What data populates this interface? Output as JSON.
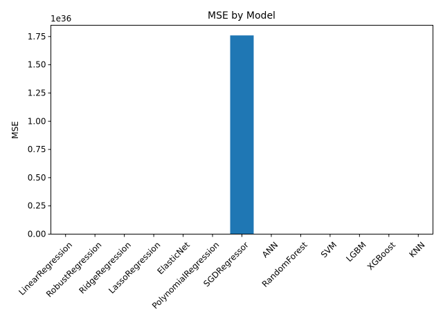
{
  "chart_data": {
    "type": "bar",
    "title": "MSE by Model",
    "xlabel": "",
    "ylabel": "MSE",
    "scale_label": "1e36",
    "categories": [
      "LinearRegression",
      "RobustRegression",
      "RidgeRegression",
      "LassoRegression",
      "ElasticNet",
      "PolynomialRegression",
      "SGDRegressor",
      "ANN",
      "RandomForest",
      "SVM",
      "LGBM",
      "XGBoost",
      "KNN"
    ],
    "values": [
      0,
      0,
      0,
      0,
      0,
      0,
      1.76,
      0,
      0,
      0,
      0,
      0,
      0
    ],
    "value_unit_multiplier": "1e36",
    "ylim": [
      0,
      1.85
    ],
    "yticks": [
      "0.00",
      "0.25",
      "0.50",
      "0.75",
      "1.00",
      "1.25",
      "1.50",
      "1.75"
    ],
    "bar_color": "#1f77b4",
    "grid": false,
    "legend": "none"
  }
}
